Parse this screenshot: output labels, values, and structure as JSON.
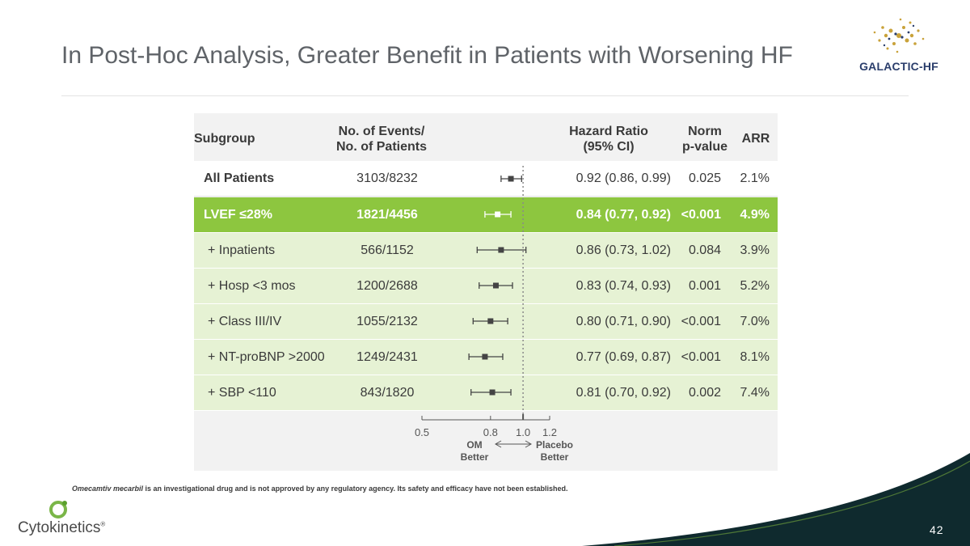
{
  "title": "In Post-Hoc Analysis, Greater Benefit in Patients with Worsening HF",
  "brand": {
    "trial_logo_text": "GALACTIC-HF",
    "company": "Cytokinetics",
    "company_mark": "®"
  },
  "colors": {
    "accent_green": "#8dc63f",
    "sub_row_green": "#e6f2d4",
    "dark_teal": "#0f2a2e"
  },
  "headers": {
    "subgroup": "Subgroup",
    "events_line1": "No. of Events/",
    "events_line2": "No. of Patients",
    "hr_line1": "Hazard Ratio",
    "hr_line2": "(95% CI)",
    "p_line1": "Norm",
    "p_line2": "p-value",
    "arr": "ARR"
  },
  "rows": [
    {
      "subgroup": "All Patients",
      "events": "3103/8232",
      "hr_text": "0.92 (0.86, 0.99)",
      "p": "0.025",
      "arr": "2.1%"
    },
    {
      "subgroup": "LVEF ≤28%",
      "events": "1821/4456",
      "hr_text": "0.84 (0.77, 0.92)",
      "p": "<0.001",
      "arr": "4.9%"
    },
    {
      "subgroup": "+ Inpatients",
      "events": "566/1152",
      "hr_text": "0.86 (0.73, 1.02)",
      "p": "0.084",
      "arr": "3.9%"
    },
    {
      "subgroup": "+ Hosp <3 mos",
      "events": "1200/2688",
      "hr_text": "0.83 (0.74, 0.93)",
      "p": "0.001",
      "arr": "5.2%"
    },
    {
      "subgroup": "+ Class III/IV",
      "events": "1055/2132",
      "hr_text": "0.80 (0.71, 0.90)",
      "p": "<0.001",
      "arr": "7.0%"
    },
    {
      "subgroup": "+ NT-proBNP >2000",
      "events": "1249/2431",
      "hr_text": "0.77 (0.69, 0.87)",
      "p": "<0.001",
      "arr": "8.1%"
    },
    {
      "subgroup": "+ SBP <110",
      "events": "843/1820",
      "hr_text": "0.81 (0.70, 0.92)",
      "p": "0.002",
      "arr": "7.4%"
    }
  ],
  "chart_data": {
    "type": "forest",
    "x_scale": "log",
    "xlim": [
      0.5,
      1.2
    ],
    "reference_line": 1.0,
    "ticks": [
      0.5,
      0.8,
      1.0,
      1.2
    ],
    "tick_labels": [
      "0.5",
      "0.8",
      "1.0",
      "1.2"
    ],
    "left_label_line1": "OM",
    "left_label_line2": "Better",
    "right_label_line1": "Placebo",
    "right_label_line2": "Better",
    "series": [
      {
        "name": "All Patients",
        "hr": 0.92,
        "lo": 0.86,
        "hi": 0.99
      },
      {
        "name": "LVEF ≤28%",
        "hr": 0.84,
        "lo": 0.77,
        "hi": 0.92
      },
      {
        "name": "+ Inpatients",
        "hr": 0.86,
        "lo": 0.73,
        "hi": 1.02
      },
      {
        "name": "+ Hosp <3 mos",
        "hr": 0.83,
        "lo": 0.74,
        "hi": 0.93
      },
      {
        "name": "+ Class III/IV",
        "hr": 0.8,
        "lo": 0.71,
        "hi": 0.9
      },
      {
        "name": "+ NT-proBNP >2000",
        "hr": 0.77,
        "lo": 0.69,
        "hi": 0.87
      },
      {
        "name": "+ SBP <110",
        "hr": 0.81,
        "lo": 0.7,
        "hi": 0.92
      }
    ]
  },
  "footnote": {
    "drug": "Omecamtiv mecarbil",
    "text": " is an investigational drug and is not approved by any regulatory agency. Its safety and efficacy have not been established."
  },
  "page_number": "42"
}
